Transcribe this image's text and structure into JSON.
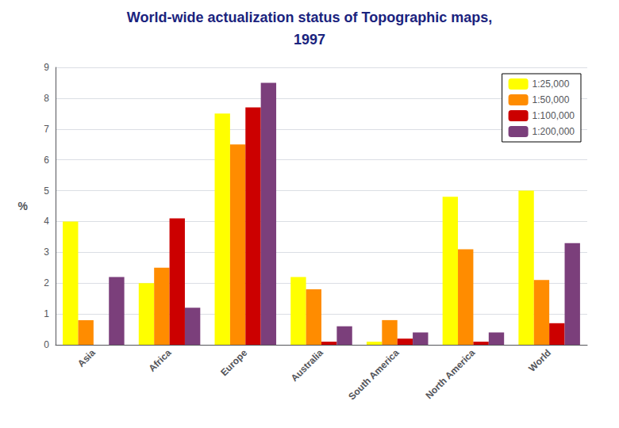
{
  "chart_data": {
    "type": "bar",
    "title": "World-wide actualization status of Topographic maps,",
    "subtitle": "1997",
    "categories": [
      "Asia",
      "Africa",
      "Europe",
      "Australia",
      "South America",
      "North America",
      "World"
    ],
    "series": [
      {
        "name": "1:25,000",
        "color": "#FFFF00",
        "values": [
          4.0,
          2.0,
          7.5,
          2.2,
          0.1,
          4.8,
          5.0
        ]
      },
      {
        "name": "1:50,000",
        "color": "#FF8C00",
        "values": [
          0.8,
          2.5,
          6.5,
          1.8,
          0.8,
          3.1,
          2.1
        ]
      },
      {
        "name": "1:100,000",
        "color": "#CC0000",
        "values": [
          0.0,
          4.1,
          7.7,
          0.1,
          0.2,
          0.1,
          0.7
        ]
      },
      {
        "name": "1:200,000",
        "color": "#7B3F7B",
        "values": [
          2.2,
          1.2,
          8.5,
          0.6,
          0.4,
          0.4,
          3.3
        ]
      }
    ],
    "ylabel": "%",
    "ylim": [
      0,
      9
    ],
    "yticks": [
      0,
      1,
      2,
      3,
      4,
      5,
      6,
      7,
      8,
      9
    ],
    "grid": true,
    "legend": "upper right"
  }
}
